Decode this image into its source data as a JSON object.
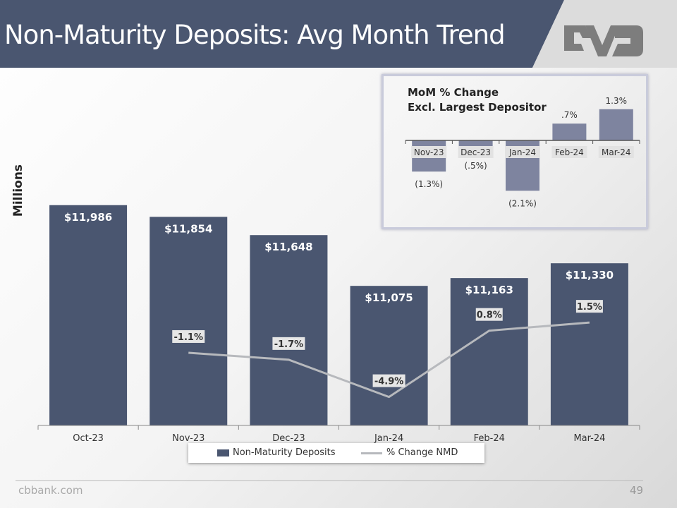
{
  "slide": {
    "title": "Non-Maturity Deposits: Avg Month Trend",
    "logo_text": "CVB",
    "footer": "cbbank.com",
    "page_number": "49"
  },
  "colors": {
    "header": "#4a5670",
    "bar": "#4a5670",
    "line": "#b7b9bd",
    "inset_bar": "#7e849f"
  },
  "chart_data": [
    {
      "type": "bar",
      "ylabel": "Millions",
      "categories": [
        "Oct-23",
        "Nov-23",
        "Dec-23",
        "Jan-24",
        "Feb-24",
        "Mar-24"
      ],
      "series": [
        {
          "name": "Non-Maturity Deposits",
          "type": "bar",
          "values": [
            11986,
            11854,
            11648,
            11075,
            11163,
            11330
          ],
          "labels": [
            "$11,986",
            "$11,854",
            "$11,648",
            "$11,075",
            "$11,163",
            "$11,330"
          ]
        },
        {
          "name": "% Change NMD",
          "type": "line",
          "values": [
            null,
            -1.1,
            -1.7,
            -4.9,
            0.8,
            1.5
          ],
          "labels": [
            "",
            "-1.1%",
            "-1.7%",
            "-4.9%",
            "0.8%",
            "1.5%"
          ]
        }
      ],
      "ylim": [
        9500,
        12000
      ],
      "y2lim": [
        -7.35,
        11.7
      ],
      "grid": false,
      "legend": "bottom"
    },
    {
      "type": "bar",
      "title": "MoM % Change Excl. Largest Depositor",
      "title_lines": [
        "MoM % Change",
        "Excl. Largest Depositor"
      ],
      "categories": [
        "Nov-23",
        "Dec-23",
        "Jan-24",
        "Feb-24",
        "Mar-24"
      ],
      "values": [
        -1.3,
        -0.5,
        -2.1,
        0.7,
        1.3
      ],
      "labels": [
        "(1.3%)",
        "(.5%)",
        "(2.1%)",
        ".7%",
        "1.3%"
      ],
      "ylim": [
        -2.6,
        1.6
      ],
      "grid": false
    }
  ]
}
